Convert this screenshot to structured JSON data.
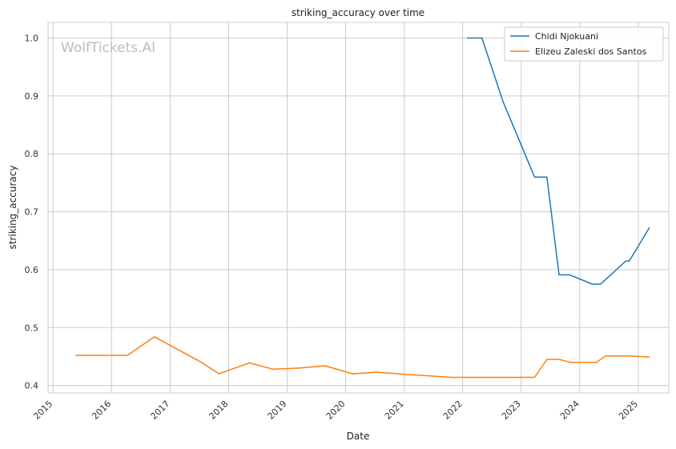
{
  "chart_data": {
    "type": "line",
    "title": "striking_accuracy over time",
    "xlabel": "Date",
    "ylabel": "striking_accuracy",
    "watermark": "WolfTickets.AI",
    "xlim": [
      "2014-12-01",
      "2025-07-10"
    ],
    "ylim": [
      0.387,
      1.027
    ],
    "x_ticks": [
      "2015",
      "2016",
      "2017",
      "2018",
      "2019",
      "2020",
      "2021",
      "2022",
      "2023",
      "2024",
      "2025"
    ],
    "y_ticks": [
      "0.4",
      "0.5",
      "0.6",
      "0.7",
      "0.8",
      "0.9",
      "1.0"
    ],
    "grid": true,
    "legend_position": "top-right",
    "series": [
      {
        "name": "Chidi Njokuani",
        "color": "#1f77b4",
        "points": [
          {
            "x": "2022-02-01",
            "y": 1.0
          },
          {
            "x": "2022-05-01",
            "y": 1.0
          },
          {
            "x": "2022-09-10",
            "y": 0.89
          },
          {
            "x": "2023-03-25",
            "y": 0.76
          },
          {
            "x": "2023-06-10",
            "y": 0.76
          },
          {
            "x": "2023-08-25",
            "y": 0.591
          },
          {
            "x": "2023-10-30",
            "y": 0.591
          },
          {
            "x": "2024-03-20",
            "y": 0.575
          },
          {
            "x": "2024-05-10",
            "y": 0.575
          },
          {
            "x": "2024-10-15",
            "y": 0.615
          },
          {
            "x": "2024-11-05",
            "y": 0.615
          },
          {
            "x": "2025-03-10",
            "y": 0.672
          }
        ]
      },
      {
        "name": "Elizeu Zaleski dos Santos",
        "color": "#ff7f0e",
        "points": [
          {
            "x": "2015-05-25",
            "y": 0.452
          },
          {
            "x": "2016-04-10",
            "y": 0.452
          },
          {
            "x": "2016-09-25",
            "y": 0.484
          },
          {
            "x": "2017-07-15",
            "y": 0.44
          },
          {
            "x": "2017-11-01",
            "y": 0.42
          },
          {
            "x": "2018-05-10",
            "y": 0.439
          },
          {
            "x": "2018-10-05",
            "y": 0.428
          },
          {
            "x": "2019-03-15",
            "y": 0.43
          },
          {
            "x": "2019-08-25",
            "y": 0.434
          },
          {
            "x": "2020-02-15",
            "y": 0.42
          },
          {
            "x": "2020-07-10",
            "y": 0.423
          },
          {
            "x": "2021-01-20",
            "y": 0.419
          },
          {
            "x": "2021-10-25",
            "y": 0.414
          },
          {
            "x": "2023-03-25",
            "y": 0.414
          },
          {
            "x": "2023-06-10",
            "y": 0.445
          },
          {
            "x": "2023-08-25",
            "y": 0.445
          },
          {
            "x": "2023-11-05",
            "y": 0.44
          },
          {
            "x": "2024-04-15",
            "y": 0.44
          },
          {
            "x": "2024-06-10",
            "y": 0.451
          },
          {
            "x": "2024-11-01",
            "y": 0.451
          },
          {
            "x": "2025-03-10",
            "y": 0.449
          }
        ]
      }
    ]
  }
}
